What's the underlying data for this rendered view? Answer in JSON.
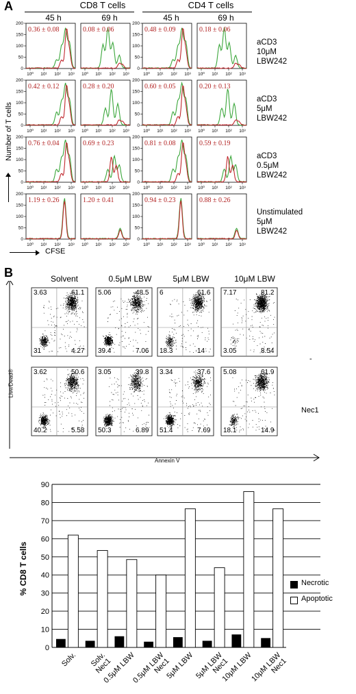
{
  "panel_a": {
    "letter": "A",
    "groups": [
      "CD8 T cells",
      "CD4 T cells"
    ],
    "timepoints": [
      "45 h",
      "69 h",
      "45 h",
      "69 h"
    ],
    "conditions": [
      "aCD3\n10μM\nLBW242",
      "aCD3\n5μM\nLBW242",
      "aCD3\n0.5μM\nLBW242",
      "Unstimulated\n5μM\nLBW242"
    ],
    "stats": [
      [
        "0.36 ± 0.08",
        "0.08 ± 0.06",
        "0.48 ± 0.09",
        "0.18 ± 0.06"
      ],
      [
        "0.42 ± 0.12",
        "0.28 ± 0.20",
        "0.60 ± 0.05",
        "0.20 ± 0.13"
      ],
      [
        "0.76 ± 0.04",
        "0.69 ± 0.23",
        "0.81 ± 0.08",
        "0.59 ± 0.19"
      ],
      [
        "1.19 ± 0.26",
        "1.20 ± 0.41",
        "0.94 ± 0.23",
        "0.88 ± 0.26"
      ]
    ],
    "y_label": "Number of T cells",
    "x_label": "CFSE",
    "y_ticks": [
      "0",
      "50",
      "100",
      "150",
      "200"
    ],
    "x_ticks": [
      "10⁰",
      "10¹",
      "10²",
      "10³"
    ],
    "colors": {
      "green": "#3aa63a",
      "red": "#c0272d"
    }
  },
  "panel_b": {
    "letter": "B",
    "columns": [
      "Solvent",
      "0.5μM LBW",
      "5μM LBW",
      "10μM LBW"
    ],
    "rows": [
      "-",
      "Nec1"
    ],
    "quadrants": [
      [
        {
          "ul": "3.63",
          "ur": "61.1",
          "ll": "31",
          "lr": "4.27"
        },
        {
          "ul": "5.06",
          "ur": "48.5",
          "ll": "39.4",
          "lr": "7.06"
        },
        {
          "ul": "6",
          "ur": "61.6",
          "ll": "18.3",
          "lr": "14"
        },
        {
          "ul": "7.17",
          "ur": "81.2",
          "ll": "3.05",
          "lr": "8.54"
        }
      ],
      [
        {
          "ul": "3.62",
          "ur": "50.6",
          "ll": "40.2",
          "lr": "5.58"
        },
        {
          "ul": "3.05",
          "ur": "39.8",
          "ll": "50.3",
          "lr": "6.89"
        },
        {
          "ul": "3.34",
          "ur": "37.6",
          "ll": "51.4",
          "lr": "7.69"
        },
        {
          "ul": "5.08",
          "ur": "61.9",
          "ll": "18.1",
          "lr": "14.9"
        }
      ]
    ],
    "y_label": "Live/Dead®",
    "x_label": "Annexin V"
  },
  "chart_data": {
    "type": "bar",
    "ylabel": "% CD8 T cells",
    "ylim": [
      0,
      90
    ],
    "yticks": [
      0,
      10,
      20,
      30,
      40,
      50,
      60,
      70,
      80,
      90
    ],
    "grid": true,
    "legend_position": "right",
    "categories": [
      "Solv.",
      "Solv.\nNec1",
      "0.5μM LBW",
      "0.5μM LBW\nNec1",
      "5μM LBW",
      "5μM LBW\nNec1",
      "10μM LBW",
      "10μM LBW\nNec1"
    ],
    "series": [
      {
        "name": "Necrotic",
        "color": "#000000",
        "values": [
          4.5,
          3.5,
          6,
          3,
          5.5,
          3.5,
          7,
          5
        ]
      },
      {
        "name": "Apoptotic",
        "color": "#ffffff",
        "values": [
          62,
          53.5,
          48.5,
          40,
          76.5,
          44,
          86,
          76.5
        ]
      }
    ]
  }
}
